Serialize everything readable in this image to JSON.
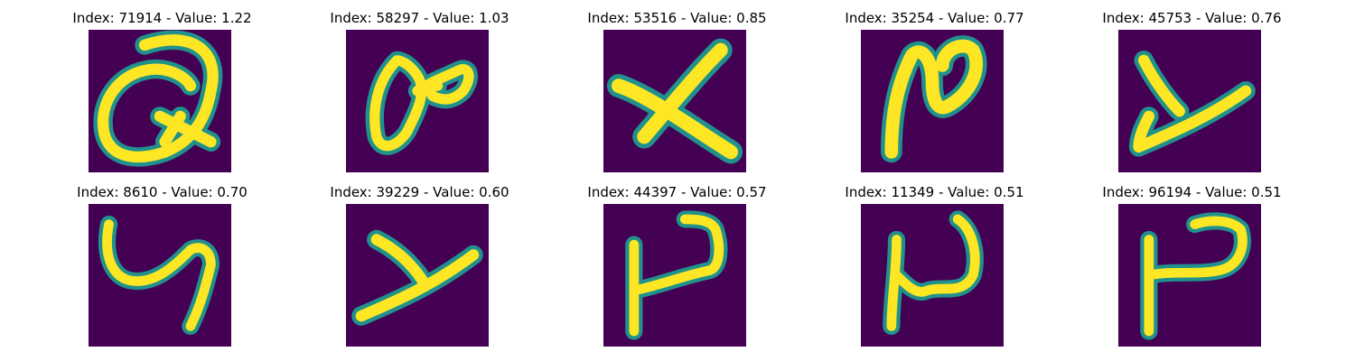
{
  "colors": {
    "background": "#440154",
    "stroke_edge": "#21918c",
    "stroke_core": "#fde725"
  },
  "panels": [
    {
      "title": "Index: 71914 - Value: 1.22",
      "glyph": "Q-shape"
    },
    {
      "title": "Index: 58297 - Value: 1.03",
      "glyph": "loop-shape"
    },
    {
      "title": "Index: 53516 - Value: 0.85",
      "glyph": "X-shape"
    },
    {
      "title": "Index: 35254 - Value: 0.77",
      "glyph": "N-shape"
    },
    {
      "title": "Index: 45753 - Value: 0.76",
      "glyph": "Y-shape"
    },
    {
      "title": "Index: 8610 - Value: 0.70",
      "glyph": "y-shape"
    },
    {
      "title": "Index: 39229 - Value: 0.60",
      "glyph": "Y-shape"
    },
    {
      "title": "Index: 44397 - Value: 0.57",
      "glyph": "P-shape"
    },
    {
      "title": "Index: 11349 - Value: 0.51",
      "glyph": "N-shape"
    },
    {
      "title": "Index: 96194 - Value: 0.51",
      "glyph": "P-shape"
    }
  ]
}
